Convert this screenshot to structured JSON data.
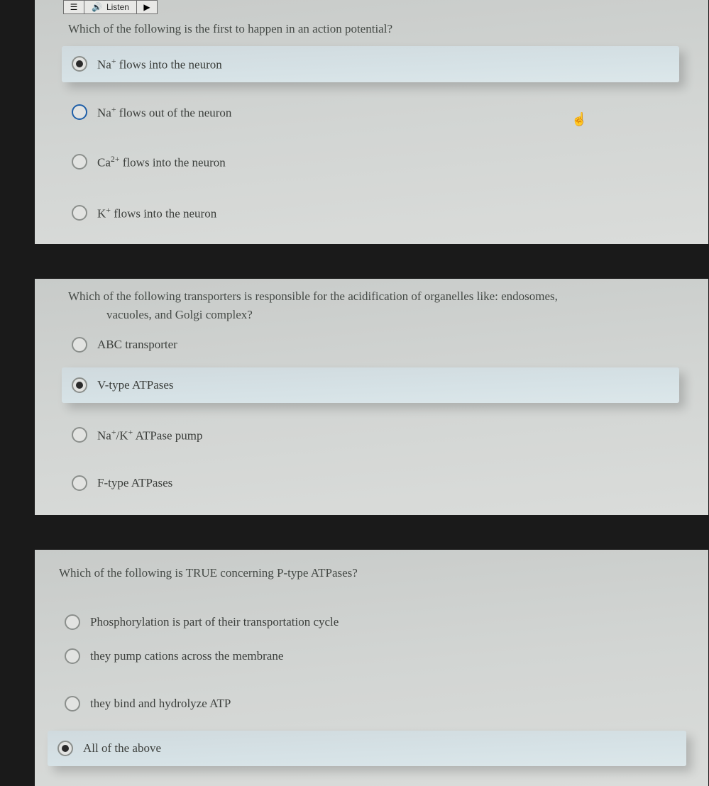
{
  "toolbar": {
    "menu_icon": "☰",
    "listen_icon": "🔊",
    "listen_label": "Listen",
    "play_icon": "▶"
  },
  "questions": [
    {
      "text": "Which of the following is the first to happen in an action potential?",
      "options": [
        {
          "html": "Na<sup>+</sup> flows into the neuron",
          "selected": true
        },
        {
          "html": "Na<sup>+</sup> flows out of the neuron",
          "selected": false,
          "blue": true
        },
        {
          "html": "Ca<sup>2+</sup> flows into the neuron",
          "selected": false
        },
        {
          "html": "K<sup>+</sup> flows into the neuron",
          "selected": false
        }
      ]
    },
    {
      "text": "Which of the following transporters is responsible for the acidification of organelles like: endosomes,",
      "text2": "vacuoles, and Golgi complex?",
      "options": [
        {
          "html": "ABC transporter",
          "selected": false
        },
        {
          "html": "V-type ATPases",
          "selected": true
        },
        {
          "html": "Na<sup>+</sup>/K<sup>+</sup> ATPase pump",
          "selected": false
        },
        {
          "html": "F-type ATPases",
          "selected": false
        }
      ]
    },
    {
      "text": "Which of the following is TRUE concerning P-type ATPases?",
      "options": [
        {
          "html": "Phosphorylation is part of their transportation cycle",
          "selected": false
        },
        {
          "html": "they pump cations across the membrane",
          "selected": false
        },
        {
          "html": "they bind and hydrolyze ATP",
          "selected": false
        },
        {
          "html": "All of the above",
          "selected": true
        }
      ]
    }
  ],
  "colors": {
    "page_bg": "#1a1a1a",
    "block_bg_top": "#c8cbc9",
    "block_bg_bot": "#dadcda",
    "selected_bg": "#d6e2e6",
    "text": "#454a46",
    "radio_border": "#8b8f8c",
    "radio_blue": "#1f5fa8",
    "radio_dot": "#2a2a2a"
  }
}
